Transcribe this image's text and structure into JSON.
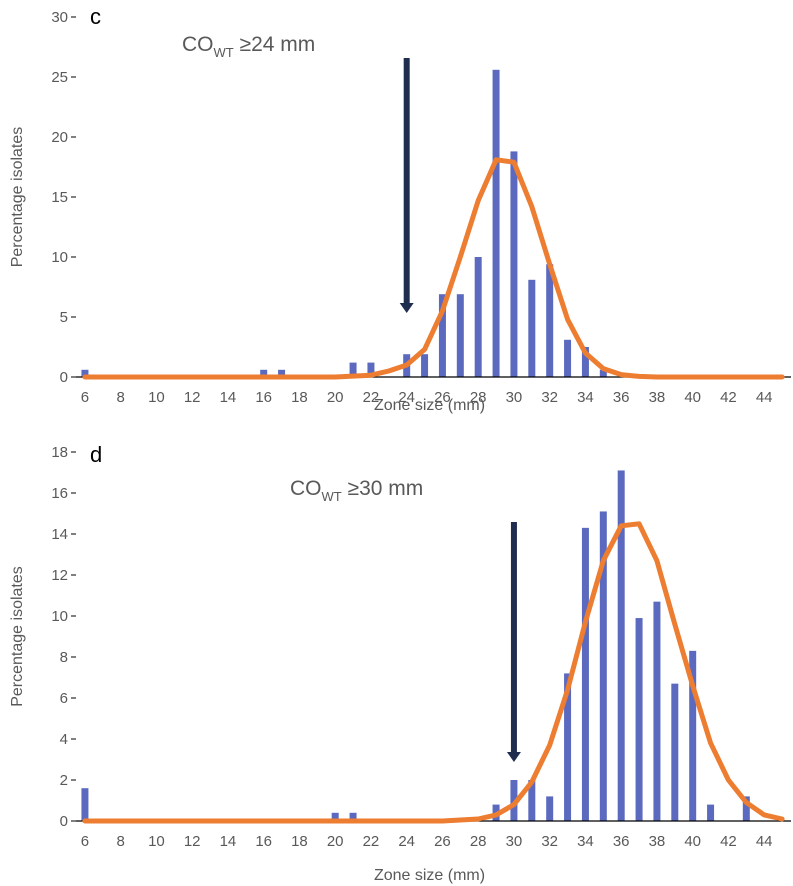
{
  "colors": {
    "bar": "#5b6abf",
    "curve": "#ed7d31",
    "arrow": "#1f2d4f",
    "text": "#595959",
    "axis": "#000000"
  },
  "chart_data": [
    {
      "type": "bar",
      "panel_label": "c",
      "annotation": {
        "main": "CO",
        "sub": "WT",
        "rest": " ≥24 mm"
      },
      "arrow_x": 24,
      "xlabel": "Zone size (mm)",
      "ylabel": "Percentage isolates",
      "xlim": [
        6,
        45
      ],
      "ylim": [
        0,
        30
      ],
      "xticks": [
        6,
        8,
        10,
        12,
        14,
        16,
        18,
        20,
        22,
        24,
        26,
        28,
        30,
        32,
        34,
        36,
        38,
        40,
        42,
        44
      ],
      "yticks": [
        0,
        5,
        10,
        15,
        20,
        25,
        30
      ],
      "series": [
        {
          "kind": "bar",
          "x": [
            6,
            16,
            17,
            21,
            22,
            24,
            25,
            26,
            27,
            28,
            29,
            30,
            31,
            32,
            33,
            34,
            35
          ],
          "values": [
            0.6,
            0.6,
            0.6,
            1.2,
            1.2,
            1.9,
            1.9,
            6.9,
            6.9,
            10,
            25.6,
            18.8,
            8.1,
            9.4,
            3.1,
            2.5,
            0.6
          ]
        },
        {
          "kind": "line",
          "x": [
            6,
            20,
            22,
            23,
            24,
            25,
            26,
            27,
            28,
            29,
            30,
            31,
            32,
            33,
            34,
            35,
            36,
            37,
            38,
            45
          ],
          "values": [
            0,
            0,
            0.15,
            0.5,
            1.0,
            2.3,
            5.5,
            10,
            14.7,
            18.1,
            17.9,
            14.2,
            9.4,
            4.8,
            2.0,
            0.7,
            0.2,
            0.05,
            0,
            0
          ]
        }
      ]
    },
    {
      "type": "bar",
      "panel_label": "d",
      "annotation": {
        "main": "CO",
        "sub": "WT",
        "rest": " ≥30 mm"
      },
      "arrow_x": 30,
      "xlabel": "Zone size (mm)",
      "ylabel": "Percentage isolates",
      "xlim": [
        6,
        45
      ],
      "ylim": [
        0,
        18
      ],
      "xticks": [
        6,
        8,
        10,
        12,
        14,
        16,
        18,
        20,
        22,
        24,
        26,
        28,
        30,
        32,
        34,
        36,
        38,
        40,
        42,
        44
      ],
      "yticks": [
        0,
        2,
        4,
        6,
        8,
        10,
        12,
        14,
        16,
        18
      ],
      "series": [
        {
          "kind": "bar",
          "x": [
            6,
            20,
            21,
            29,
            30,
            31,
            32,
            33,
            34,
            35,
            36,
            37,
            38,
            39,
            40,
            41,
            43
          ],
          "values": [
            1.6,
            0.4,
            0.4,
            0.8,
            2.0,
            2.0,
            1.2,
            7.2,
            14.3,
            15.1,
            17.1,
            9.9,
            10.7,
            6.7,
            8.3,
            0.8,
            1.2
          ]
        },
        {
          "kind": "line",
          "x": [
            6,
            26,
            27,
            28,
            29,
            30,
            31,
            32,
            33,
            34,
            35,
            36,
            37,
            38,
            39,
            40,
            41,
            42,
            43,
            44,
            45
          ],
          "values": [
            0,
            0,
            0.05,
            0.1,
            0.3,
            0.8,
            1.9,
            3.7,
            6.4,
            9.7,
            12.7,
            14.4,
            14.5,
            12.7,
            9.6,
            6.6,
            3.8,
            2.0,
            0.9,
            0.3,
            0.1
          ]
        }
      ]
    }
  ]
}
